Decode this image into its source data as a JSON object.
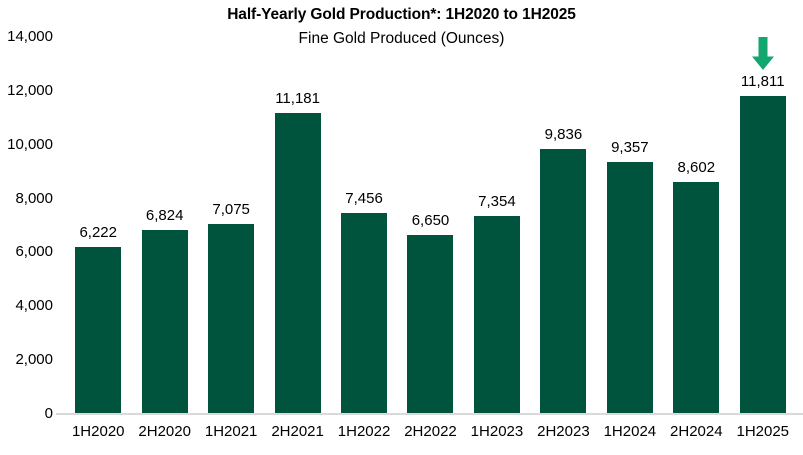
{
  "chart": {
    "title": "Half-Yearly Gold Production*: 1H2020 to 1H2025",
    "subtitle": "Fine Gold Produced (Ounces)"
  },
  "chart_data": {
    "type": "bar",
    "title": "Half-Yearly Gold Production*: 1H2020 to 1H2025",
    "subtitle": "Fine Gold Produced (Ounces)",
    "categories": [
      "1H2020",
      "2H2020",
      "1H2021",
      "2H2021",
      "1H2022",
      "2H2022",
      "1H2023",
      "2H2023",
      "1H2024",
      "2H2024",
      "1H2025"
    ],
    "values": [
      6222,
      6824,
      7075,
      11181,
      7456,
      6650,
      7354,
      9836,
      9357,
      8602,
      11811
    ],
    "value_labels": [
      "6,222",
      "6,824",
      "7,075",
      "11,181",
      "7,456",
      "6,650",
      "7,354",
      "9,836",
      "9,357",
      "8,602",
      "11,811"
    ],
    "xlabel": "",
    "ylabel": "",
    "ylim": [
      0,
      14000
    ],
    "ytick_interval": 2000,
    "ytick_labels": [
      "0",
      "2,000",
      "4,000",
      "6,000",
      "8,000",
      "10,000",
      "12,000",
      "14,000"
    ],
    "grid": false,
    "legend": "none",
    "bar_color": "#00543E",
    "axis_line_color": "#D9D9D9",
    "text_color": "#000000",
    "highlight": {
      "category": "1H2025",
      "marker": "down-arrow",
      "color": "#13A76F"
    }
  }
}
